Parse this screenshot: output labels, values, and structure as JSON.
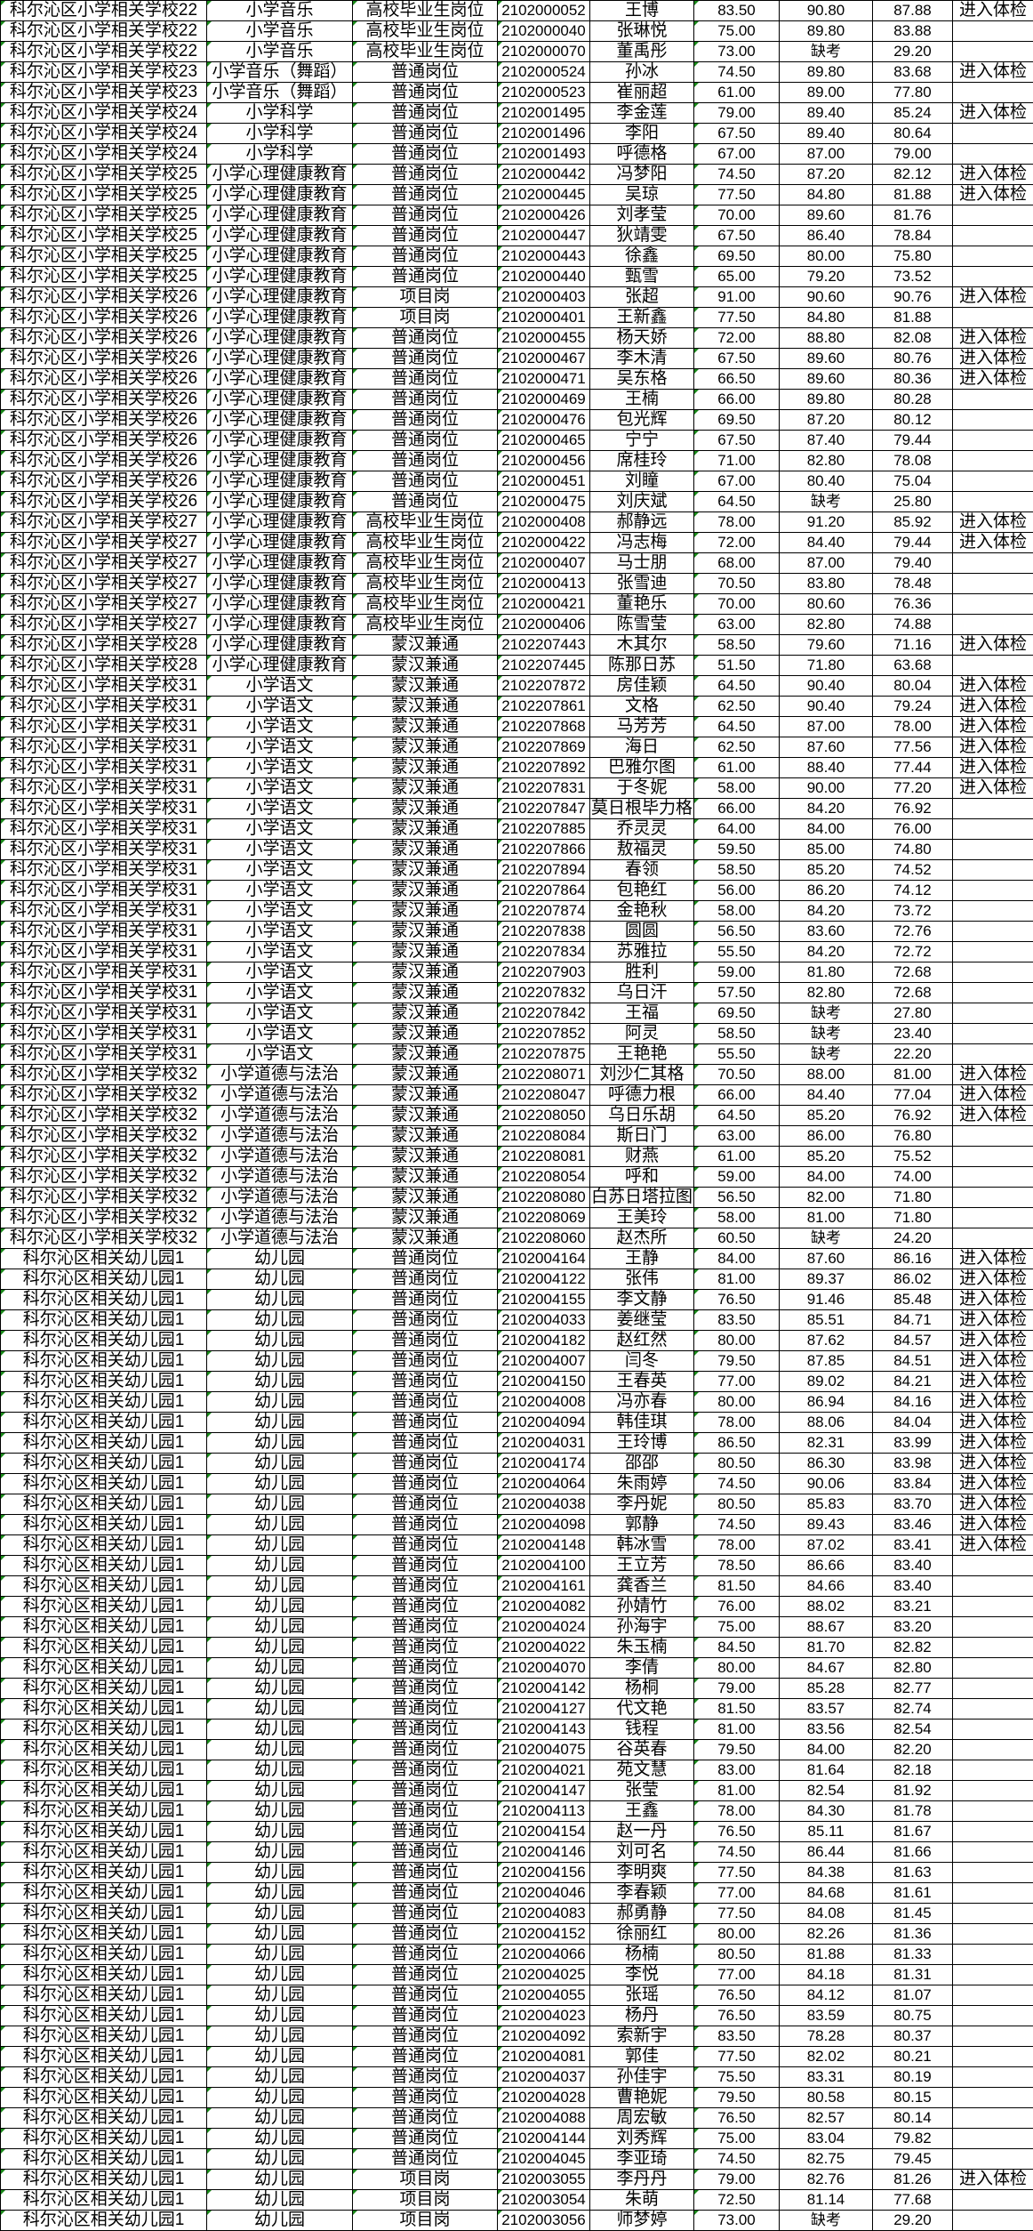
{
  "colors": {
    "text": "#000000",
    "border": "#000000",
    "error_indicator": "#1a8a1a"
  },
  "rows": [
    [
      "科尔沁区小学相关学校22",
      "小学音乐",
      "高校毕业生岗位",
      "2102000052",
      "王博",
      "83.50",
      "90.80",
      "87.88",
      "进入体检"
    ],
    [
      "科尔沁区小学相关学校22",
      "小学音乐",
      "高校毕业生岗位",
      "2102000040",
      "张琳悦",
      "75.00",
      "89.80",
      "83.88",
      ""
    ],
    [
      "科尔沁区小学相关学校22",
      "小学音乐",
      "高校毕业生岗位",
      "2102000070",
      "董禹彤",
      "73.00",
      "缺考",
      "29.20",
      ""
    ],
    [
      "科尔沁区小学相关学校23",
      "小学音乐（舞蹈）",
      "普通岗位",
      "2102000524",
      "孙冰",
      "74.50",
      "89.80",
      "83.68",
      "进入体检"
    ],
    [
      "科尔沁区小学相关学校23",
      "小学音乐（舞蹈）",
      "普通岗位",
      "2102000523",
      "崔丽超",
      "61.00",
      "89.00",
      "77.80",
      ""
    ],
    [
      "科尔沁区小学相关学校24",
      "小学科学",
      "普通岗位",
      "2102001495",
      "李金莲",
      "79.00",
      "89.40",
      "85.24",
      "进入体检"
    ],
    [
      "科尔沁区小学相关学校24",
      "小学科学",
      "普通岗位",
      "2102001496",
      "李阳",
      "67.50",
      "89.40",
      "80.64",
      ""
    ],
    [
      "科尔沁区小学相关学校24",
      "小学科学",
      "普通岗位",
      "2102001493",
      "呼德格",
      "67.00",
      "87.00",
      "79.00",
      ""
    ],
    [
      "科尔沁区小学相关学校25",
      "小学心理健康教育",
      "普通岗位",
      "2102000442",
      "冯梦阳",
      "74.50",
      "87.20",
      "82.12",
      "进入体检"
    ],
    [
      "科尔沁区小学相关学校25",
      "小学心理健康教育",
      "普通岗位",
      "2102000445",
      "吴琼",
      "77.50",
      "84.80",
      "81.88",
      "进入体检"
    ],
    [
      "科尔沁区小学相关学校25",
      "小学心理健康教育",
      "普通岗位",
      "2102000426",
      "刘孝莹",
      "70.00",
      "89.60",
      "81.76",
      ""
    ],
    [
      "科尔沁区小学相关学校25",
      "小学心理健康教育",
      "普通岗位",
      "2102000447",
      "狄靖雯",
      "67.50",
      "86.40",
      "78.84",
      ""
    ],
    [
      "科尔沁区小学相关学校25",
      "小学心理健康教育",
      "普通岗位",
      "2102000443",
      "徐鑫",
      "69.50",
      "80.00",
      "75.80",
      ""
    ],
    [
      "科尔沁区小学相关学校25",
      "小学心理健康教育",
      "普通岗位",
      "2102000440",
      "甄雪",
      "65.00",
      "79.20",
      "73.52",
      ""
    ],
    [
      "科尔沁区小学相关学校26",
      "小学心理健康教育",
      "项目岗",
      "2102000403",
      "张超",
      "91.00",
      "90.60",
      "90.76",
      "进入体检"
    ],
    [
      "科尔沁区小学相关学校26",
      "小学心理健康教育",
      "项目岗",
      "2102000401",
      "王新鑫",
      "77.50",
      "84.80",
      "81.88",
      ""
    ],
    [
      "科尔沁区小学相关学校26",
      "小学心理健康教育",
      "普通岗位",
      "2102000455",
      "杨天娇",
      "72.00",
      "88.80",
      "82.08",
      "进入体检"
    ],
    [
      "科尔沁区小学相关学校26",
      "小学心理健康教育",
      "普通岗位",
      "2102000467",
      "李木清",
      "67.50",
      "89.60",
      "80.76",
      "进入体检"
    ],
    [
      "科尔沁区小学相关学校26",
      "小学心理健康教育",
      "普通岗位",
      "2102000471",
      "吴东格",
      "66.50",
      "89.60",
      "80.36",
      "进入体检"
    ],
    [
      "科尔沁区小学相关学校26",
      "小学心理健康教育",
      "普通岗位",
      "2102000469",
      "王楠",
      "66.00",
      "89.80",
      "80.28",
      ""
    ],
    [
      "科尔沁区小学相关学校26",
      "小学心理健康教育",
      "普通岗位",
      "2102000476",
      "包光辉",
      "69.50",
      "87.20",
      "80.12",
      ""
    ],
    [
      "科尔沁区小学相关学校26",
      "小学心理健康教育",
      "普通岗位",
      "2102000465",
      "宁宁",
      "67.50",
      "87.40",
      "79.44",
      ""
    ],
    [
      "科尔沁区小学相关学校26",
      "小学心理健康教育",
      "普通岗位",
      "2102000456",
      "席桂玲",
      "71.00",
      "82.80",
      "78.08",
      ""
    ],
    [
      "科尔沁区小学相关学校26",
      "小学心理健康教育",
      "普通岗位",
      "2102000451",
      "刘瞳",
      "67.00",
      "80.40",
      "75.04",
      ""
    ],
    [
      "科尔沁区小学相关学校26",
      "小学心理健康教育",
      "普通岗位",
      "2102000475",
      "刘庆斌",
      "64.50",
      "缺考",
      "25.80",
      ""
    ],
    [
      "科尔沁区小学相关学校27",
      "小学心理健康教育",
      "高校毕业生岗位",
      "2102000408",
      "郝静远",
      "78.00",
      "91.20",
      "85.92",
      "进入体检"
    ],
    [
      "科尔沁区小学相关学校27",
      "小学心理健康教育",
      "高校毕业生岗位",
      "2102000422",
      "冯志梅",
      "72.00",
      "84.40",
      "79.44",
      "进入体检"
    ],
    [
      "科尔沁区小学相关学校27",
      "小学心理健康教育",
      "高校毕业生岗位",
      "2102000407",
      "马士朋",
      "68.00",
      "87.00",
      "79.40",
      ""
    ],
    [
      "科尔沁区小学相关学校27",
      "小学心理健康教育",
      "高校毕业生岗位",
      "2102000413",
      "张雪迪",
      "70.50",
      "83.80",
      "78.48",
      ""
    ],
    [
      "科尔沁区小学相关学校27",
      "小学心理健康教育",
      "高校毕业生岗位",
      "2102000421",
      "董艳乐",
      "70.00",
      "80.60",
      "76.36",
      ""
    ],
    [
      "科尔沁区小学相关学校27",
      "小学心理健康教育",
      "高校毕业生岗位",
      "2102000406",
      "陈雪莹",
      "63.00",
      "82.80",
      "74.88",
      ""
    ],
    [
      "科尔沁区小学相关学校28",
      "小学心理健康教育",
      "蒙汉兼通",
      "2102207443",
      "木其尔",
      "58.50",
      "79.60",
      "71.16",
      "进入体检"
    ],
    [
      "科尔沁区小学相关学校28",
      "小学心理健康教育",
      "蒙汉兼通",
      "2102207445",
      "陈那日苏",
      "51.50",
      "71.80",
      "63.68",
      ""
    ],
    [
      "科尔沁区小学相关学校31",
      "小学语文",
      "蒙汉兼通",
      "2102207872",
      "房佳颖",
      "64.50",
      "90.40",
      "80.04",
      "进入体检"
    ],
    [
      "科尔沁区小学相关学校31",
      "小学语文",
      "蒙汉兼通",
      "2102207861",
      "文格",
      "62.50",
      "90.40",
      "79.24",
      "进入体检"
    ],
    [
      "科尔沁区小学相关学校31",
      "小学语文",
      "蒙汉兼通",
      "2102207868",
      "马芳芳",
      "64.50",
      "87.00",
      "78.00",
      "进入体检"
    ],
    [
      "科尔沁区小学相关学校31",
      "小学语文",
      "蒙汉兼通",
      "2102207869",
      "海日",
      "62.50",
      "87.60",
      "77.56",
      "进入体检"
    ],
    [
      "科尔沁区小学相关学校31",
      "小学语文",
      "蒙汉兼通",
      "2102207892",
      "巴雅尔图",
      "61.00",
      "88.40",
      "77.44",
      "进入体检"
    ],
    [
      "科尔沁区小学相关学校31",
      "小学语文",
      "蒙汉兼通",
      "2102207831",
      "于冬妮",
      "58.00",
      "90.00",
      "77.20",
      "进入体检"
    ],
    [
      "科尔沁区小学相关学校31",
      "小学语文",
      "蒙汉兼通",
      "2102207847",
      "莫日根毕力格",
      "66.00",
      "84.20",
      "76.92",
      ""
    ],
    [
      "科尔沁区小学相关学校31",
      "小学语文",
      "蒙汉兼通",
      "2102207885",
      "乔灵灵",
      "64.00",
      "84.00",
      "76.00",
      ""
    ],
    [
      "科尔沁区小学相关学校31",
      "小学语文",
      "蒙汉兼通",
      "2102207866",
      "敖福灵",
      "59.50",
      "85.00",
      "74.80",
      ""
    ],
    [
      "科尔沁区小学相关学校31",
      "小学语文",
      "蒙汉兼通",
      "2102207894",
      "春领",
      "58.50",
      "85.20",
      "74.52",
      ""
    ],
    [
      "科尔沁区小学相关学校31",
      "小学语文",
      "蒙汉兼通",
      "2102207864",
      "包艳红",
      "56.00",
      "86.20",
      "74.12",
      ""
    ],
    [
      "科尔沁区小学相关学校31",
      "小学语文",
      "蒙汉兼通",
      "2102207874",
      "金艳秋",
      "58.00",
      "84.20",
      "73.72",
      ""
    ],
    [
      "科尔沁区小学相关学校31",
      "小学语文",
      "蒙汉兼通",
      "2102207838",
      "圆圆",
      "56.50",
      "83.60",
      "72.76",
      ""
    ],
    [
      "科尔沁区小学相关学校31",
      "小学语文",
      "蒙汉兼通",
      "2102207834",
      "苏雅拉",
      "55.50",
      "84.20",
      "72.72",
      ""
    ],
    [
      "科尔沁区小学相关学校31",
      "小学语文",
      "蒙汉兼通",
      "2102207903",
      "胜利",
      "59.00",
      "81.80",
      "72.68",
      ""
    ],
    [
      "科尔沁区小学相关学校31",
      "小学语文",
      "蒙汉兼通",
      "2102207832",
      "乌日汗",
      "57.50",
      "82.80",
      "72.68",
      ""
    ],
    [
      "科尔沁区小学相关学校31",
      "小学语文",
      "蒙汉兼通",
      "2102207842",
      "王福",
      "69.50",
      "缺考",
      "27.80",
      ""
    ],
    [
      "科尔沁区小学相关学校31",
      "小学语文",
      "蒙汉兼通",
      "2102207852",
      "阿灵",
      "58.50",
      "缺考",
      "23.40",
      ""
    ],
    [
      "科尔沁区小学相关学校31",
      "小学语文",
      "蒙汉兼通",
      "2102207875",
      "王艳艳",
      "55.50",
      "缺考",
      "22.20",
      ""
    ],
    [
      "科尔沁区小学相关学校32",
      "小学道德与法治",
      "蒙汉兼通",
      "2102208071",
      "刘沙仁其格",
      "70.50",
      "88.00",
      "81.00",
      "进入体检"
    ],
    [
      "科尔沁区小学相关学校32",
      "小学道德与法治",
      "蒙汉兼通",
      "2102208047",
      "呼德力根",
      "66.00",
      "84.40",
      "77.04",
      "进入体检"
    ],
    [
      "科尔沁区小学相关学校32",
      "小学道德与法治",
      "蒙汉兼通",
      "2102208050",
      "乌日乐胡",
      "64.50",
      "85.20",
      "76.92",
      "进入体检"
    ],
    [
      "科尔沁区小学相关学校32",
      "小学道德与法治",
      "蒙汉兼通",
      "2102208084",
      "斯日门",
      "63.00",
      "86.00",
      "76.80",
      ""
    ],
    [
      "科尔沁区小学相关学校32",
      "小学道德与法治",
      "蒙汉兼通",
      "2102208081",
      "财燕",
      "61.00",
      "85.20",
      "75.52",
      ""
    ],
    [
      "科尔沁区小学相关学校32",
      "小学道德与法治",
      "蒙汉兼通",
      "2102208054",
      "呼和",
      "59.00",
      "84.00",
      "74.00",
      ""
    ],
    [
      "科尔沁区小学相关学校32",
      "小学道德与法治",
      "蒙汉兼通",
      "2102208080",
      "白苏日塔拉图",
      "56.50",
      "82.00",
      "71.80",
      ""
    ],
    [
      "科尔沁区小学相关学校32",
      "小学道德与法治",
      "蒙汉兼通",
      "2102208069",
      "王美玲",
      "58.00",
      "81.00",
      "71.80",
      ""
    ],
    [
      "科尔沁区小学相关学校32",
      "小学道德与法治",
      "蒙汉兼通",
      "2102208060",
      "赵杰所",
      "60.50",
      "缺考",
      "24.20",
      ""
    ],
    [
      "科尔沁区相关幼儿园1",
      "幼儿园",
      "普通岗位",
      "2102004164",
      "王静",
      "84.00",
      "87.60",
      "86.16",
      "进入体检"
    ],
    [
      "科尔沁区相关幼儿园1",
      "幼儿园",
      "普通岗位",
      "2102004122",
      "张伟",
      "81.00",
      "89.37",
      "86.02",
      "进入体检"
    ],
    [
      "科尔沁区相关幼儿园1",
      "幼儿园",
      "普通岗位",
      "2102004155",
      "李文静",
      "76.50",
      "91.46",
      "85.48",
      "进入体检"
    ],
    [
      "科尔沁区相关幼儿园1",
      "幼儿园",
      "普通岗位",
      "2102004033",
      "姜继莹",
      "83.50",
      "85.51",
      "84.71",
      "进入体检"
    ],
    [
      "科尔沁区相关幼儿园1",
      "幼儿园",
      "普通岗位",
      "2102004182",
      "赵红然",
      "80.00",
      "87.62",
      "84.57",
      "进入体检"
    ],
    [
      "科尔沁区相关幼儿园1",
      "幼儿园",
      "普通岗位",
      "2102004007",
      "闫冬",
      "79.50",
      "87.85",
      "84.51",
      "进入体检"
    ],
    [
      "科尔沁区相关幼儿园1",
      "幼儿园",
      "普通岗位",
      "2102004150",
      "王春英",
      "77.00",
      "89.02",
      "84.21",
      "进入体检"
    ],
    [
      "科尔沁区相关幼儿园1",
      "幼儿园",
      "普通岗位",
      "2102004008",
      "冯亦春",
      "80.00",
      "86.94",
      "84.16",
      "进入体检"
    ],
    [
      "科尔沁区相关幼儿园1",
      "幼儿园",
      "普通岗位",
      "2102004094",
      "韩佳琪",
      "78.00",
      "88.06",
      "84.04",
      "进入体检"
    ],
    [
      "科尔沁区相关幼儿园1",
      "幼儿园",
      "普通岗位",
      "2102004031",
      "王玲博",
      "86.50",
      "82.31",
      "83.99",
      "进入体检"
    ],
    [
      "科尔沁区相关幼儿园1",
      "幼儿园",
      "普通岗位",
      "2102004174",
      "邵邵",
      "80.50",
      "86.30",
      "83.98",
      "进入体检"
    ],
    [
      "科尔沁区相关幼儿园1",
      "幼儿园",
      "普通岗位",
      "2102004064",
      "朱雨婷",
      "74.50",
      "90.06",
      "83.84",
      "进入体检"
    ],
    [
      "科尔沁区相关幼儿园1",
      "幼儿园",
      "普通岗位",
      "2102004038",
      "李丹妮",
      "80.50",
      "85.83",
      "83.70",
      "进入体检"
    ],
    [
      "科尔沁区相关幼儿园1",
      "幼儿园",
      "普通岗位",
      "2102004098",
      "郭静",
      "74.50",
      "89.43",
      "83.46",
      "进入体检"
    ],
    [
      "科尔沁区相关幼儿园1",
      "幼儿园",
      "普通岗位",
      "2102004148",
      "韩冰雪",
      "78.00",
      "87.02",
      "83.41",
      "进入体检"
    ],
    [
      "科尔沁区相关幼儿园1",
      "幼儿园",
      "普通岗位",
      "2102004100",
      "王立芳",
      "78.50",
      "86.66",
      "83.40",
      ""
    ],
    [
      "科尔沁区相关幼儿园1",
      "幼儿园",
      "普通岗位",
      "2102004161",
      "龚香兰",
      "81.50",
      "84.66",
      "83.40",
      ""
    ],
    [
      "科尔沁区相关幼儿园1",
      "幼儿园",
      "普通岗位",
      "2102004082",
      "孙婧竹",
      "76.00",
      "88.02",
      "83.21",
      ""
    ],
    [
      "科尔沁区相关幼儿园1",
      "幼儿园",
      "普通岗位",
      "2102004024",
      "孙海宇",
      "75.00",
      "88.67",
      "83.20",
      ""
    ],
    [
      "科尔沁区相关幼儿园1",
      "幼儿园",
      "普通岗位",
      "2102004022",
      "朱玉楠",
      "84.50",
      "81.70",
      "82.82",
      ""
    ],
    [
      "科尔沁区相关幼儿园1",
      "幼儿园",
      "普通岗位",
      "2102004070",
      "李倩",
      "80.00",
      "84.67",
      "82.80",
      ""
    ],
    [
      "科尔沁区相关幼儿园1",
      "幼儿园",
      "普通岗位",
      "2102004142",
      "杨桐",
      "79.00",
      "85.28",
      "82.77",
      ""
    ],
    [
      "科尔沁区相关幼儿园1",
      "幼儿园",
      "普通岗位",
      "2102004127",
      "代文艳",
      "81.50",
      "83.57",
      "82.74",
      ""
    ],
    [
      "科尔沁区相关幼儿园1",
      "幼儿园",
      "普通岗位",
      "2102004143",
      "钱程",
      "81.00",
      "83.56",
      "82.54",
      ""
    ],
    [
      "科尔沁区相关幼儿园1",
      "幼儿园",
      "普通岗位",
      "2102004075",
      "谷英春",
      "79.50",
      "84.00",
      "82.20",
      ""
    ],
    [
      "科尔沁区相关幼儿园1",
      "幼儿园",
      "普通岗位",
      "2102004021",
      "苑文慧",
      "83.00",
      "81.64",
      "82.18",
      ""
    ],
    [
      "科尔沁区相关幼儿园1",
      "幼儿园",
      "普通岗位",
      "2102004147",
      "张莹",
      "81.00",
      "82.54",
      "81.92",
      ""
    ],
    [
      "科尔沁区相关幼儿园1",
      "幼儿园",
      "普通岗位",
      "2102004113",
      "王鑫",
      "78.00",
      "84.30",
      "81.78",
      ""
    ],
    [
      "科尔沁区相关幼儿园1",
      "幼儿园",
      "普通岗位",
      "2102004154",
      "赵一丹",
      "76.50",
      "85.11",
      "81.67",
      ""
    ],
    [
      "科尔沁区相关幼儿园1",
      "幼儿园",
      "普通岗位",
      "2102004146",
      "刘可名",
      "74.50",
      "86.44",
      "81.66",
      ""
    ],
    [
      "科尔沁区相关幼儿园1",
      "幼儿园",
      "普通岗位",
      "2102004156",
      "李明爽",
      "77.50",
      "84.38",
      "81.63",
      ""
    ],
    [
      "科尔沁区相关幼儿园1",
      "幼儿园",
      "普通岗位",
      "2102004046",
      "李春颖",
      "77.00",
      "84.68",
      "81.61",
      ""
    ],
    [
      "科尔沁区相关幼儿园1",
      "幼儿园",
      "普通岗位",
      "2102004083",
      "郝勇静",
      "77.50",
      "84.08",
      "81.45",
      ""
    ],
    [
      "科尔沁区相关幼儿园1",
      "幼儿园",
      "普通岗位",
      "2102004152",
      "徐丽红",
      "80.00",
      "82.26",
      "81.36",
      ""
    ],
    [
      "科尔沁区相关幼儿园1",
      "幼儿园",
      "普通岗位",
      "2102004066",
      "杨楠",
      "80.50",
      "81.88",
      "81.33",
      ""
    ],
    [
      "科尔沁区相关幼儿园1",
      "幼儿园",
      "普通岗位",
      "2102004025",
      "李悦",
      "77.00",
      "84.18",
      "81.31",
      ""
    ],
    [
      "科尔沁区相关幼儿园1",
      "幼儿园",
      "普通岗位",
      "2102004055",
      "张瑶",
      "76.50",
      "84.12",
      "81.07",
      ""
    ],
    [
      "科尔沁区相关幼儿园1",
      "幼儿园",
      "普通岗位",
      "2102004023",
      "杨丹",
      "76.50",
      "83.59",
      "80.75",
      ""
    ],
    [
      "科尔沁区相关幼儿园1",
      "幼儿园",
      "普通岗位",
      "2102004092",
      "索新宇",
      "83.50",
      "78.28",
      "80.37",
      ""
    ],
    [
      "科尔沁区相关幼儿园1",
      "幼儿园",
      "普通岗位",
      "2102004081",
      "郭佳",
      "77.50",
      "82.02",
      "80.21",
      ""
    ],
    [
      "科尔沁区相关幼儿园1",
      "幼儿园",
      "普通岗位",
      "2102004037",
      "孙佳宇",
      "75.50",
      "83.31",
      "80.19",
      ""
    ],
    [
      "科尔沁区相关幼儿园1",
      "幼儿园",
      "普通岗位",
      "2102004028",
      "曹艳妮",
      "79.50",
      "80.58",
      "80.15",
      ""
    ],
    [
      "科尔沁区相关幼儿园1",
      "幼儿园",
      "普通岗位",
      "2102004088",
      "周宏敏",
      "76.50",
      "82.57",
      "80.14",
      ""
    ],
    [
      "科尔沁区相关幼儿园1",
      "幼儿园",
      "普通岗位",
      "2102004144",
      "刘秀辉",
      "75.00",
      "83.04",
      "79.82",
      ""
    ],
    [
      "科尔沁区相关幼儿园1",
      "幼儿园",
      "普通岗位",
      "2102004045",
      "李亚琦",
      "74.50",
      "82.75",
      "79.45",
      ""
    ],
    [
      "科尔沁区相关幼儿园1",
      "幼儿园",
      "项目岗",
      "2102003055",
      "李丹丹",
      "79.00",
      "82.76",
      "81.26",
      "进入体检"
    ],
    [
      "科尔沁区相关幼儿园1",
      "幼儿园",
      "项目岗",
      "2102003054",
      "朱萌",
      "72.50",
      "81.14",
      "77.68",
      ""
    ],
    [
      "科尔沁区相关幼儿园1",
      "幼儿园",
      "项目岗",
      "2102003056",
      "师梦婷",
      "73.00",
      "缺考",
      "29.20",
      ""
    ]
  ]
}
